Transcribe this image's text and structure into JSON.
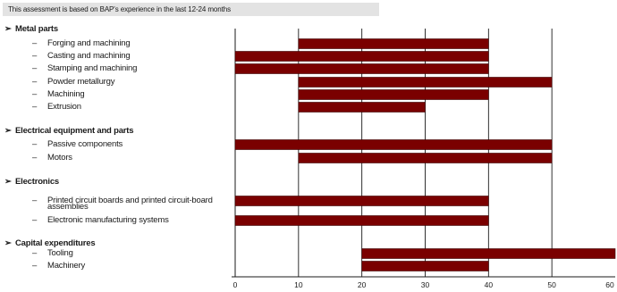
{
  "header": {
    "note": "This assessment is based on BAP's experience in the last 12-24 months"
  },
  "group_marker": "➢",
  "item_marker": "–",
  "chart_data": {
    "type": "bar",
    "orientation": "horizontal",
    "title": "",
    "xlabel": "",
    "ylabel": "",
    "xlim": [
      0,
      60
    ],
    "xticks": [
      "0",
      "10",
      "20",
      "30",
      "40",
      "50",
      "60"
    ],
    "grid": true,
    "bar_color": "#7a0000",
    "groups": [
      {
        "label": "Metal parts",
        "items": [
          {
            "label": "Forging and machining",
            "range": [
              10,
              40
            ]
          },
          {
            "label": "Casting and machining",
            "range": [
              0,
              40
            ]
          },
          {
            "label": "Stamping and machining",
            "range": [
              0,
              40
            ]
          },
          {
            "label": "Powder metallurgy",
            "range": [
              10,
              50
            ]
          },
          {
            "label": "Machining",
            "range": [
              10,
              40
            ]
          },
          {
            "label": "Extrusion",
            "range": [
              10,
              30
            ]
          }
        ]
      },
      {
        "label": "Electrical equipment and parts",
        "items": [
          {
            "label": "Passive components",
            "range": [
              0,
              50
            ]
          },
          {
            "label": "Motors",
            "range": [
              10,
              50
            ]
          }
        ]
      },
      {
        "label": "Electronics",
        "items": [
          {
            "label": "Printed circuit boards and printed circuit-board",
            "label2": "assemblies",
            "range": [
              0,
              40
            ]
          },
          {
            "label": "Electronic manufacturing systems",
            "range": [
              0,
              40
            ]
          }
        ]
      },
      {
        "label": "Capital expenditures",
        "items": [
          {
            "label": "Tooling",
            "range": [
              20,
              60
            ]
          },
          {
            "label": "Machinery",
            "range": [
              20,
              40
            ]
          }
        ]
      }
    ]
  }
}
